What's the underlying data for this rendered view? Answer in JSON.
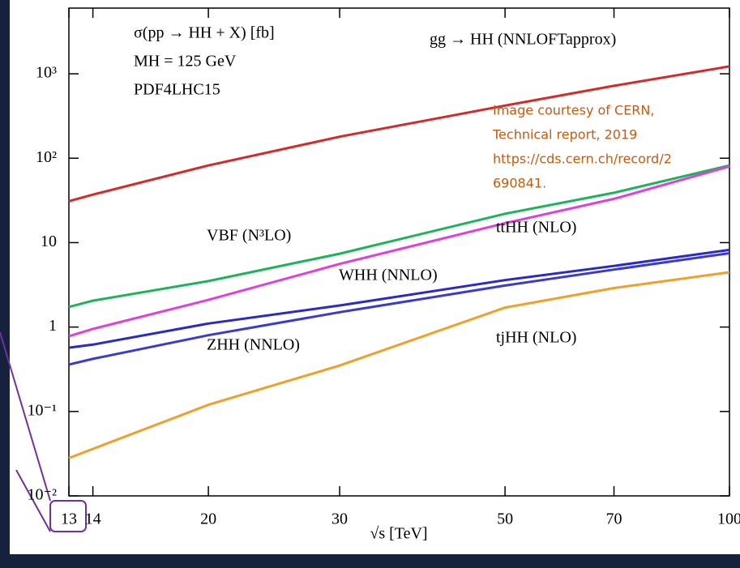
{
  "chart_data": {
    "type": "line",
    "x_label": "√s [TeV]",
    "annotations": [
      "σ(pp → HH + X) [fb]",
      "MH = 125 GeV",
      "PDF4LHC15"
    ],
    "notes": [
      "Image courtesy of CERN,",
      "Technical report, 2019",
      "https://cds.cern.ch/record/2",
      "690841."
    ],
    "x": [
      13,
      14,
      20,
      30,
      50,
      70,
      100
    ],
    "series": [
      {
        "name": "gg → HH (NNLOFTapprox)",
        "color": "#d42a2a",
        "values": [
          31,
          37,
          82,
          180,
          420,
          720,
          1224
        ]
      },
      {
        "name": "VBF (N³LO)",
        "color": "#1db35a",
        "values": [
          1.73,
          2.05,
          3.5,
          7.4,
          22,
          39,
          82
        ]
      },
      {
        "name": "ttHH (NLO)",
        "color": "#e03ee0",
        "values": [
          0.78,
          0.95,
          2.1,
          5.6,
          17,
          33,
          80
        ]
      },
      {
        "name": "WHH (NNLO)",
        "color": "#2a2ac4",
        "values": [
          0.57,
          0.62,
          1.1,
          1.8,
          3.6,
          5.3,
          8.2
        ]
      },
      {
        "name": "ZHH (NNLO)",
        "color": "#3a3ad0",
        "values": [
          0.36,
          0.42,
          0.8,
          1.5,
          3.1,
          4.8,
          7.5
        ]
      },
      {
        "name": "tjHH (NLO)",
        "color": "#f0a028",
        "values": [
          0.028,
          0.036,
          0.12,
          0.35,
          1.7,
          2.9,
          4.46
        ]
      }
    ],
    "log_x": true,
    "log_y": true,
    "xlim": [
      13,
      100
    ],
    "xticks": [
      13,
      14,
      20,
      30,
      50,
      70,
      100
    ],
    "ylim": [
      0.01,
      6000
    ],
    "yticks": [
      {
        "value": 1000,
        "label": "10³"
      },
      {
        "value": 100,
        "label": "10²"
      },
      10,
      1,
      {
        "value": 0.1,
        "label": "10⁻¹"
      },
      {
        "value": 0.01,
        "label": "10⁻²"
      }
    ]
  }
}
